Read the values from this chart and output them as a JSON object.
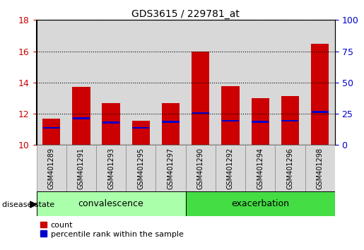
{
  "title": "GDS3615 / 229781_at",
  "samples": [
    "GSM401289",
    "GSM401291",
    "GSM401293",
    "GSM401295",
    "GSM401297",
    "GSM401290",
    "GSM401292",
    "GSM401294",
    "GSM401296",
    "GSM401298"
  ],
  "bar_heights": [
    11.7,
    13.7,
    12.7,
    11.55,
    12.7,
    16.0,
    13.75,
    13.0,
    13.15,
    16.5
  ],
  "percentile_vals": [
    11.1,
    11.7,
    11.45,
    11.1,
    11.5,
    12.05,
    11.55,
    11.5,
    11.55,
    12.1
  ],
  "bar_bottom": 10.0,
  "bar_color": "#cc0000",
  "percentile_color": "#0000cc",
  "ylim_left": [
    10,
    18
  ],
  "yticks_left": [
    10,
    12,
    14,
    16,
    18
  ],
  "ylim_right": [
    0,
    100
  ],
  "yticks_right": [
    0,
    25,
    50,
    75,
    100
  ],
  "groups": [
    {
      "label": "convalescence",
      "indices": [
        0,
        1,
        2,
        3,
        4
      ],
      "color": "#aaffaa"
    },
    {
      "label": "exacerbation",
      "indices": [
        5,
        6,
        7,
        8,
        9
      ],
      "color": "#44dd44"
    }
  ],
  "group_label": "disease state",
  "legend_count": "count",
  "legend_percentile": "percentile rank within the sample",
  "bar_width": 0.6,
  "bg_color": "#ffffff",
  "tick_label_color_left": "#cc0000",
  "tick_label_color_right": "#0000cc",
  "bar_column_bg": "#d8d8d8"
}
